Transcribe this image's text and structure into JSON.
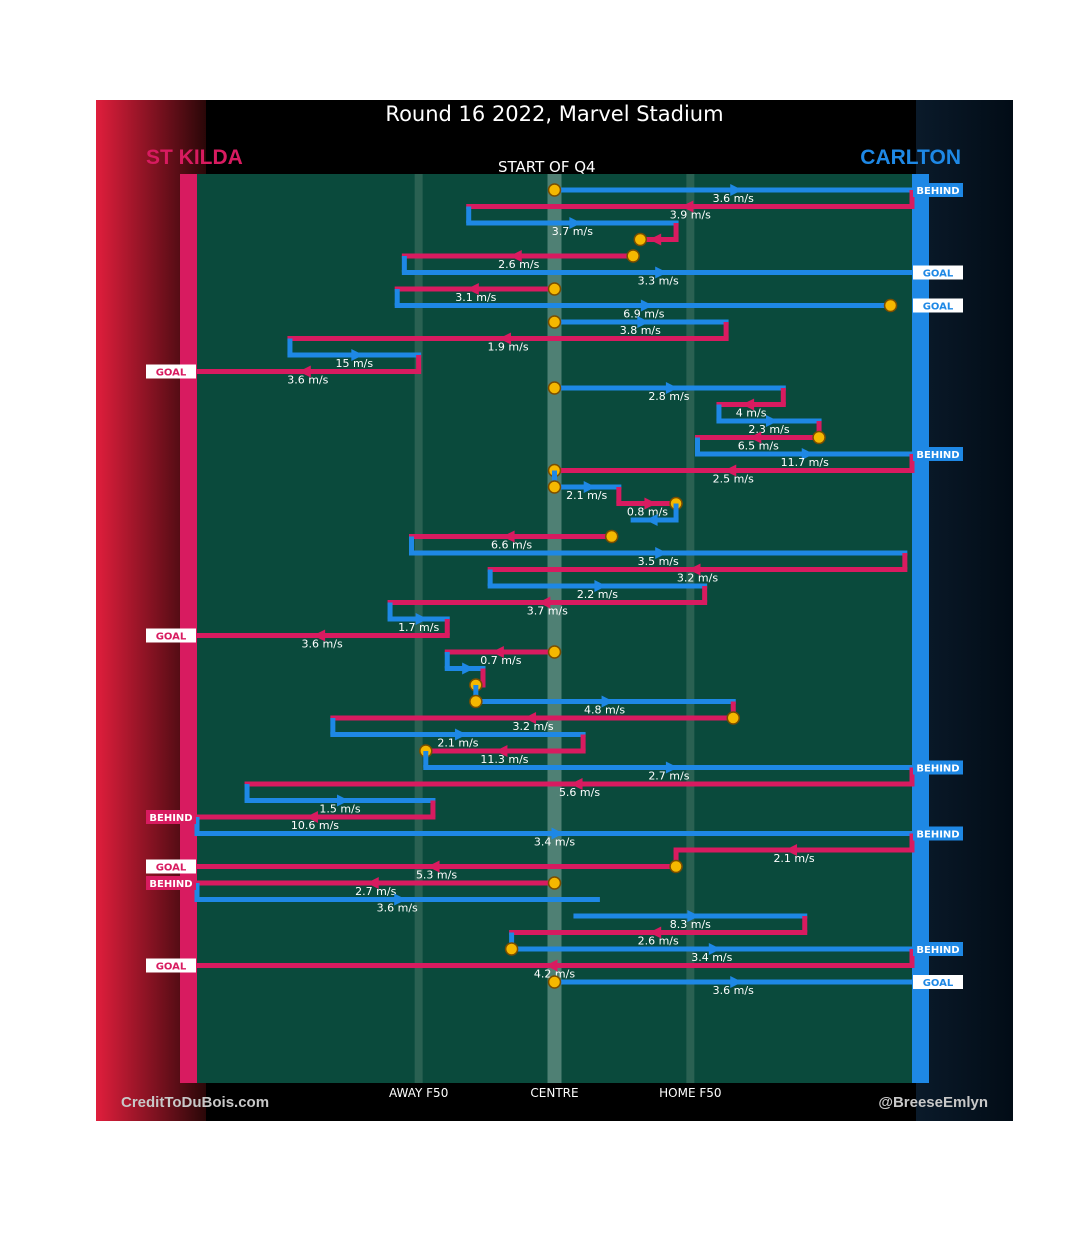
{
  "chart_data": {
    "type": "chain-diagram",
    "title": "Round 16 2022, Marvel Stadium",
    "subtitle": "START OF Q4",
    "teams": {
      "left": {
        "name": "ST KILDA",
        "color": "#d81b60"
      },
      "right": {
        "name": "CARLTON",
        "color": "#1e88e5"
      }
    },
    "axis": {
      "range": [
        0,
        100
      ],
      "direction": "field position, 0 = St Kilda goal, 100 = Carlton goal",
      "ticks": [
        {
          "label": "AWAY F50",
          "value": 31
        },
        {
          "label": "CENTRE",
          "value": 50
        },
        {
          "label": "HOME F50",
          "value": 69
        }
      ]
    },
    "credits": {
      "left": "CreditToDuBois.com",
      "right": "@BreeseEmlyn"
    },
    "chains": [
      {
        "team": "right",
        "segments": [
          {
            "start": 50,
            "end": 100,
            "label": "3.6 m/s"
          }
        ],
        "start_marker": "ball-up",
        "end_badge": "BEHIND"
      },
      {
        "team": "left",
        "segments": [
          {
            "start": 100,
            "end": 38,
            "label": "3.9 m/s"
          }
        ]
      },
      {
        "team": "right",
        "segments": [
          {
            "start": 38,
            "end": 67,
            "label": "3.7 m/s"
          }
        ]
      },
      {
        "team": "left",
        "segments": [
          {
            "start": 67,
            "end": 62,
            "label": ""
          },
          {
            "start": 62,
            "end": 62,
            "label": ""
          }
        ],
        "end_marker": "ball-up"
      },
      {
        "team": "left",
        "segments": [
          {
            "start": 61,
            "end": 29,
            "label": "2.6 m/s"
          }
        ],
        "start_marker": "ball-up"
      },
      {
        "team": "right",
        "segments": [
          {
            "start": 29,
            "end": 100,
            "label": "3.3 m/s"
          }
        ],
        "end_badge": "GOAL"
      },
      {
        "team": "left",
        "segments": [
          {
            "start": 50,
            "end": 28,
            "label": "3.1 m/s"
          }
        ],
        "start_marker": "ball-up"
      },
      {
        "team": "right",
        "segments": [
          {
            "start": 28,
            "end": 97,
            "label": "6.9 m/s"
          }
        ],
        "end_badge": "GOAL",
        "end_marker": "ball-up"
      },
      {
        "team": "right",
        "segments": [
          {
            "start": 50,
            "end": 74,
            "label": "3.8 m/s"
          }
        ],
        "start_marker": "ball-up"
      },
      {
        "team": "left",
        "segments": [
          {
            "start": 74,
            "end": 13,
            "label": "1.9 m/s"
          }
        ]
      },
      {
        "team": "right",
        "segments": [
          {
            "start": 13,
            "end": 31,
            "label": "15 m/s"
          }
        ]
      },
      {
        "team": "left",
        "segments": [
          {
            "start": 31,
            "end": 0,
            "label": "3.6 m/s"
          }
        ],
        "end_badge": "GOAL"
      },
      {
        "team": "right",
        "segments": [
          {
            "start": 50,
            "end": 82,
            "label": "2.8 m/s"
          }
        ],
        "start_marker": "ball-up"
      },
      {
        "team": "left",
        "segments": [
          {
            "start": 82,
            "end": 73,
            "label": "4 m/s"
          }
        ]
      },
      {
        "team": "right",
        "segments": [
          {
            "start": 73,
            "end": 87,
            "label": "2.3 m/s"
          }
        ]
      },
      {
        "team": "left",
        "segments": [
          {
            "start": 87,
            "end": 70,
            "label": "6.5 m/s"
          }
        ],
        "start_marker": "ball-up"
      },
      {
        "team": "right",
        "segments": [
          {
            "start": 70,
            "end": 100,
            "label": "11.7 m/s"
          }
        ],
        "end_badge": "BEHIND"
      },
      {
        "team": "left",
        "segments": [
          {
            "start": 100,
            "end": 50,
            "label": "2.5 m/s"
          }
        ],
        "end_marker": "ball-up"
      },
      {
        "team": "right",
        "segments": [
          {
            "start": 50,
            "end": 59,
            "label": "2.1 m/s"
          }
        ],
        "start_marker": "ball-up"
      },
      {
        "team": "left",
        "segments": [
          {
            "start": 59,
            "end": 67,
            "label": "0.8 m/s"
          }
        ],
        "end_marker": "ball-up"
      },
      {
        "team": "right",
        "segments": [
          {
            "start": 67,
            "end": 61,
            "label": ""
          }
        ]
      },
      {
        "team": "left",
        "segments": [
          {
            "start": 58,
            "end": 30,
            "label": "6.6 m/s"
          }
        ],
        "start_marker": "ball-up"
      },
      {
        "team": "right",
        "segments": [
          {
            "start": 30,
            "end": 99,
            "label": "3.5 m/s"
          }
        ]
      },
      {
        "team": "left",
        "segments": [
          {
            "start": 99,
            "end": 41,
            "label": "3.2 m/s"
          }
        ]
      },
      {
        "team": "right",
        "segments": [
          {
            "start": 41,
            "end": 71,
            "label": "2.2 m/s"
          }
        ]
      },
      {
        "team": "left",
        "segments": [
          {
            "start": 71,
            "end": 27,
            "label": "3.7 m/s"
          }
        ]
      },
      {
        "team": "right",
        "segments": [
          {
            "start": 27,
            "end": 35,
            "label": "1.7 m/s"
          }
        ]
      },
      {
        "team": "left",
        "segments": [
          {
            "start": 35,
            "end": 0,
            "label": "3.6 m/s"
          }
        ],
        "end_badge": "GOAL"
      },
      {
        "team": "left",
        "segments": [
          {
            "start": 50,
            "end": 35,
            "label": "0.7 m/s"
          }
        ],
        "start_marker": "ball-up"
      },
      {
        "team": "right",
        "segments": [
          {
            "start": 35,
            "end": 40,
            "label": ""
          }
        ]
      },
      {
        "team": "left",
        "segments": [
          {
            "start": 40,
            "end": 39,
            "label": ""
          }
        ],
        "end_marker": "ball-up"
      },
      {
        "team": "right",
        "segments": [
          {
            "start": 39,
            "end": 75,
            "label": "4.8 m/s"
          }
        ],
        "start_marker": "ball-up"
      },
      {
        "team": "left",
        "segments": [
          {
            "start": 75,
            "end": 19,
            "label": "3.2 m/s"
          }
        ],
        "start_marker": "ball-up"
      },
      {
        "team": "right",
        "segments": [
          {
            "start": 19,
            "end": 54,
            "label": "2.1 m/s"
          }
        ]
      },
      {
        "team": "left",
        "segments": [
          {
            "start": 54,
            "end": 32,
            "label": "11.3 m/s"
          }
        ],
        "end_marker": "ball-up"
      },
      {
        "team": "right",
        "segments": [
          {
            "start": 32,
            "end": 100,
            "label": "2.7 m/s"
          }
        ],
        "end_badge": "BEHIND"
      },
      {
        "team": "left",
        "segments": [
          {
            "start": 100,
            "end": 7,
            "label": "5.6 m/s"
          }
        ]
      },
      {
        "team": "right",
        "segments": [
          {
            "start": 7,
            "end": 33,
            "label": "1.5 m/s"
          }
        ]
      },
      {
        "team": "left",
        "segments": [
          {
            "start": 33,
            "end": 0,
            "label": "10.6 m/s"
          }
        ],
        "end_badge": "BEHIND"
      },
      {
        "team": "right",
        "segments": [
          {
            "start": 0,
            "end": 100,
            "label": "3.4 m/s"
          }
        ],
        "end_badge": "BEHIND"
      },
      {
        "team": "left",
        "segments": [
          {
            "start": 100,
            "end": 67,
            "label": "2.1 m/s"
          }
        ]
      },
      {
        "team": "left",
        "segments": [
          {
            "start": 67,
            "end": 0,
            "label": "5.3 m/s"
          }
        ],
        "start_marker": "ball-up",
        "end_badge": "GOAL"
      },
      {
        "team": "left",
        "segments": [
          {
            "start": 50,
            "end": 0,
            "label": "2.7 m/s"
          }
        ],
        "start_marker": "ball-up",
        "end_badge": "BEHIND"
      },
      {
        "team": "right",
        "segments": [
          {
            "start": 0,
            "end": 56,
            "label": "3.6 m/s"
          }
        ]
      },
      {
        "team": "right",
        "segments": [
          {
            "start": 53,
            "end": 85,
            "label": "8.3 m/s"
          }
        ]
      },
      {
        "team": "left",
        "segments": [
          {
            "start": 85,
            "end": 44,
            "label": "2.6 m/s"
          }
        ]
      },
      {
        "team": "right",
        "segments": [
          {
            "start": 44,
            "end": 100,
            "label": "3.4 m/s"
          }
        ],
        "start_marker": "ball-up",
        "end_badge": "BEHIND"
      },
      {
        "team": "left",
        "segments": [
          {
            "start": 100,
            "end": 0,
            "label": "4.2 m/s"
          }
        ],
        "end_badge": "GOAL"
      },
      {
        "team": "right",
        "segments": [
          {
            "start": 50,
            "end": 100,
            "label": "3.6 m/s"
          }
        ],
        "start_marker": "ball-up",
        "end_badge": "GOAL"
      }
    ]
  }
}
